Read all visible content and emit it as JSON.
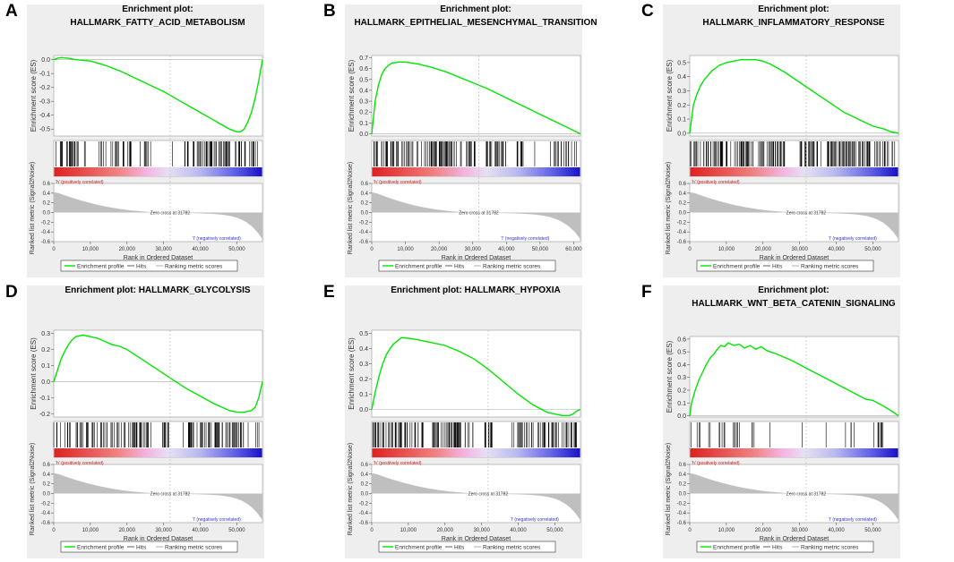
{
  "figure": {
    "legend_labels": [
      "Enrichment profile",
      "Hits",
      "Ranking metric scores"
    ],
    "x_axis_label": "Rank in Ordered Dataset",
    "y_axis_label_es": "Enrichment score (ES)",
    "y_axis_label_metric": "Ranked list metric (Signal2Noise)",
    "pos_label": "'h' (positively correlated)",
    "neg_label": "'l' (negatively correlated)",
    "zero_cross_label": "Zero cross at 31782",
    "colors": {
      "es_curve": "#00e600",
      "hits": "#000000",
      "metric_fill": "#bfbfbf",
      "panel_bg": "#eeeeee"
    }
  },
  "chart_data": [
    {
      "type": "line",
      "letter": "A",
      "title_lines": [
        "Enrichment plot:",
        "HALLMARK_FATTY_ACID_METABOLISM"
      ],
      "x_ticks": [
        "0",
        "10,000",
        "20,000",
        "30,000",
        "40,000",
        "50,000"
      ],
      "x_tick_values": [
        0,
        10000,
        20000,
        30000,
        40000,
        50000
      ],
      "xlim": [
        0,
        57000
      ],
      "y_ticks": [
        "0.0",
        "-0.1",
        "-0.2",
        "-0.3",
        "-0.4",
        "-0.5"
      ],
      "y_tick_values": [
        0.0,
        -0.1,
        -0.2,
        -0.3,
        -0.4,
        -0.5
      ],
      "ylim": [
        -0.55,
        0.03
      ],
      "es_x": [
        0,
        1000,
        2000,
        4000,
        6000,
        8000,
        10000,
        14000,
        18000,
        22000,
        26000,
        30000,
        34000,
        38000,
        42000,
        46000,
        48000,
        50000,
        51000,
        52000,
        53000,
        54000,
        55000,
        56000,
        57000
      ],
      "es_y": [
        0.0,
        0.01,
        0.015,
        0.01,
        0.0,
        -0.005,
        -0.01,
        -0.04,
        -0.08,
        -0.13,
        -0.18,
        -0.23,
        -0.29,
        -0.35,
        -0.41,
        -0.47,
        -0.5,
        -0.52,
        -0.52,
        -0.5,
        -0.45,
        -0.38,
        -0.28,
        -0.15,
        0.0
      ],
      "hit_seed": 11,
      "hit_gaps": [
        [
          9000,
          12000
        ],
        [
          21000,
          23500
        ],
        [
          26500,
          35500
        ]
      ],
      "hit_density": 160
    },
    {
      "type": "line",
      "letter": "B",
      "title_lines": [
        "Enrichment plot:",
        "HALLMARK_EPITHELIAL_MESENCHYMAL_TRANSITION"
      ],
      "x_ticks": [
        "0",
        "10,000",
        "20,000",
        "30,000",
        "40,000",
        "50,000",
        "60,000"
      ],
      "x_tick_values": [
        0,
        10000,
        20000,
        30000,
        40000,
        50000,
        60000
      ],
      "xlim": [
        0,
        62000
      ],
      "y_ticks": [
        "0.0",
        "0.1",
        "0.2",
        "0.3",
        "0.4",
        "0.5",
        "0.6",
        "0.7"
      ],
      "y_tick_values": [
        0.0,
        0.1,
        0.2,
        0.3,
        0.4,
        0.5,
        0.6,
        0.7
      ],
      "ylim": [
        -0.02,
        0.72
      ],
      "es_x": [
        0,
        500,
        1000,
        2000,
        3000,
        4000,
        5000,
        6000,
        8000,
        10000,
        14000,
        18000,
        22000,
        26000,
        30000,
        34000,
        38000,
        42000,
        46000,
        50000,
        54000,
        58000,
        62000
      ],
      "es_y": [
        0.0,
        0.15,
        0.3,
        0.45,
        0.55,
        0.6,
        0.63,
        0.65,
        0.66,
        0.66,
        0.64,
        0.61,
        0.57,
        0.52,
        0.47,
        0.42,
        0.36,
        0.3,
        0.24,
        0.18,
        0.12,
        0.06,
        0.0
      ],
      "hit_seed": 23,
      "hit_gaps": [
        [
          31000,
          34000
        ],
        [
          40000,
          43000
        ],
        [
          45000,
          53000
        ]
      ],
      "hit_density": 190
    },
    {
      "type": "line",
      "letter": "C",
      "title_lines": [
        "Enrichment plot:",
        "HALLMARK_INFLAMMATORY_RESPONSE"
      ],
      "x_ticks": [
        "0",
        "10,000",
        "20,000",
        "30,000",
        "40,000",
        "50,000"
      ],
      "x_tick_values": [
        0,
        10000,
        20000,
        30000,
        40000,
        50000
      ],
      "xlim": [
        0,
        57000
      ],
      "y_ticks": [
        "0.0",
        "0.1",
        "0.2",
        "0.3",
        "0.4",
        "0.5"
      ],
      "y_tick_values": [
        0.0,
        0.1,
        0.2,
        0.3,
        0.4,
        0.5
      ],
      "ylim": [
        -0.02,
        0.55
      ],
      "es_x": [
        0,
        500,
        1000,
        2000,
        3000,
        4000,
        6000,
        8000,
        10000,
        12000,
        14000,
        16000,
        18000,
        20000,
        22000,
        26000,
        30000,
        34000,
        38000,
        42000,
        46000,
        50000,
        53000,
        55000,
        57000
      ],
      "es_y": [
        0.0,
        0.1,
        0.2,
        0.28,
        0.34,
        0.38,
        0.44,
        0.48,
        0.5,
        0.51,
        0.52,
        0.52,
        0.52,
        0.51,
        0.49,
        0.43,
        0.36,
        0.29,
        0.22,
        0.15,
        0.1,
        0.05,
        0.03,
        0.01,
        0.0
      ],
      "hit_seed": 37,
      "hit_gaps": [
        [
          26000,
          30000
        ],
        [
          35000,
          37500
        ]
      ],
      "hit_density": 200
    },
    {
      "type": "line",
      "letter": "D",
      "title_lines": [
        "Enrichment plot: HALLMARK_GLYCOLYSIS"
      ],
      "x_ticks": [
        "0",
        "10,000",
        "20,000",
        "30,000",
        "40,000",
        "50,000"
      ],
      "x_tick_values": [
        0,
        10000,
        20000,
        30000,
        40000,
        50000
      ],
      "xlim": [
        0,
        57000
      ],
      "y_ticks": [
        "0.3",
        "0.2",
        "0.1",
        "0.0",
        "-0.1",
        "-0.2"
      ],
      "y_tick_values": [
        0.3,
        0.2,
        0.1,
        0.0,
        -0.1,
        -0.2
      ],
      "ylim": [
        -0.22,
        0.32
      ],
      "es_x": [
        0,
        1000,
        2000,
        3000,
        4000,
        5000,
        6000,
        8000,
        10000,
        12000,
        14000,
        16000,
        18000,
        20000,
        24000,
        28000,
        32000,
        36000,
        40000,
        44000,
        48000,
        50000,
        52000,
        54000,
        55000,
        56000,
        57000
      ],
      "es_y": [
        0.0,
        0.07,
        0.14,
        0.19,
        0.23,
        0.26,
        0.28,
        0.29,
        0.28,
        0.27,
        0.25,
        0.23,
        0.22,
        0.2,
        0.14,
        0.08,
        0.02,
        -0.04,
        -0.09,
        -0.14,
        -0.18,
        -0.19,
        -0.19,
        -0.18,
        -0.16,
        -0.1,
        0.0
      ],
      "hit_seed": 41,
      "hit_gaps": [
        [
          26000,
          29500
        ],
        [
          31500,
          36500
        ]
      ],
      "hit_density": 170
    },
    {
      "type": "line",
      "letter": "E",
      "title_lines": [
        "Enrichment plot: HALLMARK_HYPOXIA"
      ],
      "x_ticks": [
        "0",
        "10,000",
        "20,000",
        "30,000",
        "40,000",
        "50,000"
      ],
      "x_tick_values": [
        0,
        10000,
        20000,
        30000,
        40000,
        50000
      ],
      "xlim": [
        0,
        57000
      ],
      "y_ticks": [
        "0.0",
        "0.1",
        "0.2",
        "0.3",
        "0.4",
        "0.5"
      ],
      "y_tick_values": [
        0.0,
        0.1,
        0.2,
        0.3,
        0.4,
        0.5
      ],
      "ylim": [
        -0.05,
        0.52
      ],
      "es_x": [
        0,
        1000,
        2000,
        3000,
        4000,
        5000,
        6000,
        7000,
        8000,
        9000,
        12000,
        16000,
        20000,
        24000,
        28000,
        32000,
        36000,
        40000,
        44000,
        48000,
        52000,
        54000,
        55000,
        56000,
        57000
      ],
      "es_y": [
        0.0,
        0.12,
        0.22,
        0.3,
        0.36,
        0.4,
        0.43,
        0.45,
        0.47,
        0.47,
        0.46,
        0.44,
        0.42,
        0.38,
        0.33,
        0.26,
        0.18,
        0.1,
        0.03,
        -0.02,
        -0.04,
        -0.04,
        -0.03,
        -0.01,
        0.0
      ],
      "hit_seed": 53,
      "hit_gaps": [
        [
          28000,
          30500
        ],
        [
          33500,
          38000
        ]
      ],
      "hit_density": 185
    },
    {
      "type": "line",
      "letter": "F",
      "title_lines": [
        "Enrichment plot:",
        "HALLMARK_WNT_BETA_CATENIN_SIGNALING"
      ],
      "x_ticks": [
        "0",
        "10,000",
        "20,000",
        "30,000",
        "40,000",
        "50,000"
      ],
      "x_tick_values": [
        0,
        10000,
        20000,
        30000,
        40000,
        50000
      ],
      "xlim": [
        0,
        57000
      ],
      "y_ticks": [
        "0.0",
        "0.1",
        "0.2",
        "0.3",
        "0.4",
        "0.5",
        "0.6"
      ],
      "y_tick_values": [
        0.0,
        0.1,
        0.2,
        0.3,
        0.4,
        0.5,
        0.6
      ],
      "ylim": [
        -0.01,
        0.62
      ],
      "es_x": [
        0,
        500,
        1500,
        2500,
        3500,
        4500,
        5500,
        6500,
        7500,
        8500,
        9500,
        10500,
        12000,
        13500,
        15000,
        16500,
        18000,
        19500,
        21000,
        24000,
        28000,
        32000,
        36000,
        40000,
        44000,
        48000,
        50000,
        52000,
        55000,
        57000
      ],
      "es_y": [
        0.0,
        0.1,
        0.2,
        0.28,
        0.34,
        0.4,
        0.45,
        0.48,
        0.52,
        0.55,
        0.54,
        0.57,
        0.55,
        0.56,
        0.53,
        0.55,
        0.52,
        0.54,
        0.51,
        0.48,
        0.43,
        0.37,
        0.31,
        0.25,
        0.19,
        0.13,
        0.12,
        0.09,
        0.04,
        0.0
      ],
      "hit_seed": 67,
      "hit_gaps": [
        [
          18500,
          25000
        ],
        [
          26000,
          37000
        ],
        [
          39000,
          43000
        ],
        [
          46000,
          50000
        ]
      ],
      "hit_density": 60
    }
  ]
}
